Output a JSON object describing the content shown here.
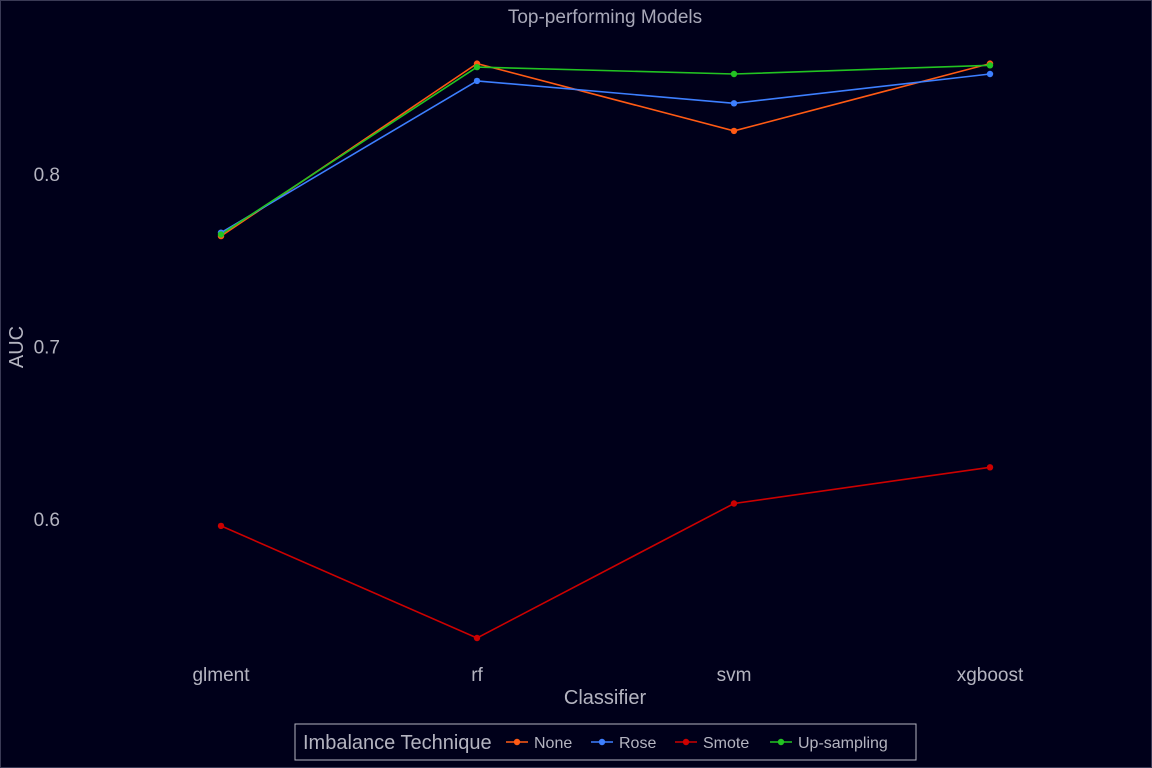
{
  "chart_data": {
    "type": "line",
    "title": "Top-performing Models",
    "xlabel": "Classifier",
    "ylabel": "AUC",
    "categories": [
      "glment",
      "rf",
      "svm",
      "xgboost"
    ],
    "ylim": [
      0.535,
      0.865
    ],
    "yticks": [
      0.6,
      0.7,
      0.8
    ],
    "ytick_labels": [
      "0.6",
      "0.7",
      "0.8"
    ],
    "grid": false,
    "legend": {
      "title": "Imbalance Technique",
      "placement": "bottom"
    },
    "series": [
      {
        "name": "None",
        "color": "#ff5a14",
        "values": [
          0.764,
          0.864,
          0.825,
          0.864
        ]
      },
      {
        "name": "Rose",
        "color": "#3d7fff",
        "values": [
          0.766,
          0.854,
          0.841,
          0.858
        ]
      },
      {
        "name": "Smote",
        "color": "#cc0000",
        "values": [
          0.596,
          0.531,
          0.609,
          0.63
        ]
      },
      {
        "name": "Up-sampling",
        "color": "#22c322",
        "values": [
          0.765,
          0.862,
          0.858,
          0.863
        ]
      }
    ]
  }
}
